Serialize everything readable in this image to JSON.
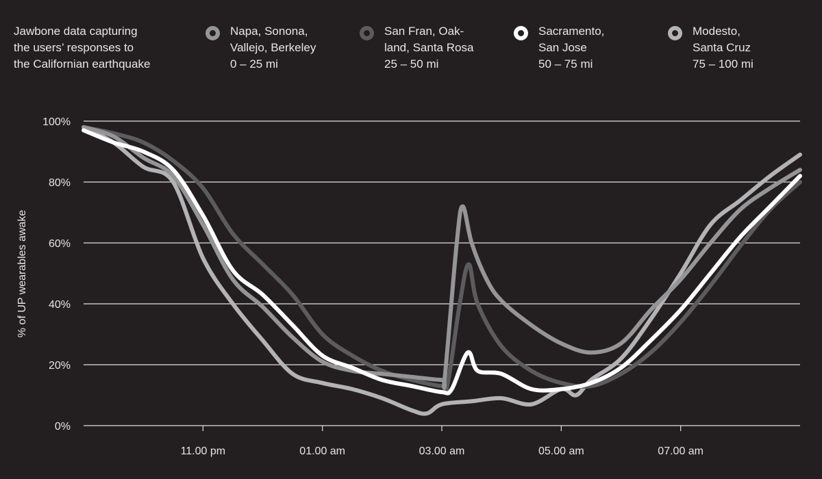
{
  "header": {
    "title_lines": [
      "Jawbone data capturing",
      "the users’ responses to",
      "the Californian earthquake"
    ]
  },
  "legend": [
    {
      "lines": [
        "Napa, Sonona,",
        "Vallejo, Berkeley",
        "0 – 25 mi"
      ],
      "color": "#959597",
      "icon": "ring-marker-icon"
    },
    {
      "lines": [
        "San Fran, Oak-",
        "land, Santa Rosa",
        "25 – 50 mi"
      ],
      "color": "#5c5c5e",
      "icon": "ring-marker-icon"
    },
    {
      "lines": [
        "Sacramento,",
        "San Jose",
        "50 – 75 mi"
      ],
      "color": "#ffffff",
      "icon": "ring-marker-icon"
    },
    {
      "lines": [
        "Modesto,",
        "Santa Cruz",
        "75 – 100 mi"
      ],
      "color": "#b3b3b5",
      "icon": "ring-marker-icon"
    }
  ],
  "chart_data": {
    "type": "line",
    "title": "",
    "xlabel": "",
    "ylabel": "% of UP wearables awake",
    "xlim": [
      "09.00 pm",
      "09.00 am"
    ],
    "ylim": [
      0,
      100
    ],
    "yticks": [
      "0%",
      "20%",
      "40%",
      "60%",
      "80%",
      "100%"
    ],
    "xticks": [
      "11.00 pm",
      "01.00 am",
      "03.00 am",
      "05.00 am",
      "07.00 am"
    ],
    "grid": "horizontal",
    "legend_position": "top",
    "series": [
      {
        "name": "Modesto, Santa Cruz 75 – 100 mi",
        "color": "#b3b3b5",
        "x": [
          "21:00",
          "21:30",
          "22:00",
          "22:30",
          "23:00",
          "23:30",
          "00:00",
          "00:30",
          "01:00",
          "01:30",
          "02:00",
          "02:30",
          "02:45",
          "03:00",
          "03:30",
          "04:00",
          "04:30",
          "05:00",
          "05:15",
          "05:30",
          "06:00",
          "06:30",
          "07:00",
          "07:30",
          "08:00",
          "08:30",
          "09:00"
        ],
        "y": [
          98,
          93,
          85,
          80,
          55,
          40,
          28,
          17,
          14,
          12,
          9,
          5,
          4,
          7,
          8,
          9,
          7,
          12,
          10,
          15,
          22,
          35,
          50,
          66,
          74,
          82,
          89
        ]
      },
      {
        "name": "San Fran, Oakland, Santa Rosa 25 – 50 mi",
        "color": "#5c5c5e",
        "x": [
          "21:00",
          "21:30",
          "22:00",
          "22:30",
          "23:00",
          "23:30",
          "00:00",
          "00:30",
          "01:00",
          "01:30",
          "02:00",
          "02:30",
          "03:00",
          "03:06",
          "03:18",
          "03:27",
          "03:36",
          "04:00",
          "04:30",
          "05:00",
          "05:30",
          "06:00",
          "06:30",
          "07:00",
          "07:30",
          "08:00",
          "08:30",
          "09:00"
        ],
        "y": [
          98,
          96,
          93,
          87,
          78,
          63,
          53,
          43,
          30,
          23,
          18,
          15,
          13,
          14,
          40,
          53,
          40,
          26,
          18,
          14,
          13,
          17,
          24,
          34,
          46,
          59,
          71,
          80
        ]
      },
      {
        "name": "Napa, Sonona, Vallejo, Berkeley 0 – 25 mi",
        "color": "#959597",
        "x": [
          "21:00",
          "21:30",
          "22:00",
          "22:30",
          "23:00",
          "23:30",
          "00:00",
          "00:30",
          "01:00",
          "01:30",
          "02:00",
          "02:30",
          "03:00",
          "03:03",
          "03:15",
          "03:21",
          "03:30",
          "03:45",
          "04:00",
          "04:30",
          "05:00",
          "05:30",
          "06:00",
          "06:30",
          "07:00",
          "07:30",
          "08:00",
          "08:30",
          "09:00"
        ],
        "y": [
          98,
          95,
          88,
          82,
          66,
          48,
          39,
          29,
          21,
          18,
          17,
          16,
          15,
          16,
          60,
          72,
          60,
          48,
          41,
          33,
          27,
          24,
          27,
          38,
          48,
          60,
          71,
          78,
          84
        ]
      },
      {
        "name": "Sacramento, San Jose 50 – 75 mi",
        "color": "#ffffff",
        "x": [
          "21:00",
          "21:30",
          "22:00",
          "22:30",
          "23:00",
          "23:30",
          "00:00",
          "00:30",
          "01:00",
          "01:30",
          "02:00",
          "02:30",
          "03:00",
          "03:10",
          "03:26",
          "03:36",
          "04:00",
          "04:30",
          "05:00",
          "05:30",
          "06:00",
          "06:30",
          "07:00",
          "07:30",
          "08:00",
          "08:30",
          "09:00"
        ],
        "y": [
          97,
          93,
          90,
          84,
          69,
          51,
          43,
          33,
          23,
          19,
          15,
          13,
          11,
          12,
          24,
          18,
          17,
          12,
          12,
          14,
          19,
          28,
          38,
          50,
          62,
          72,
          82
        ]
      }
    ]
  }
}
